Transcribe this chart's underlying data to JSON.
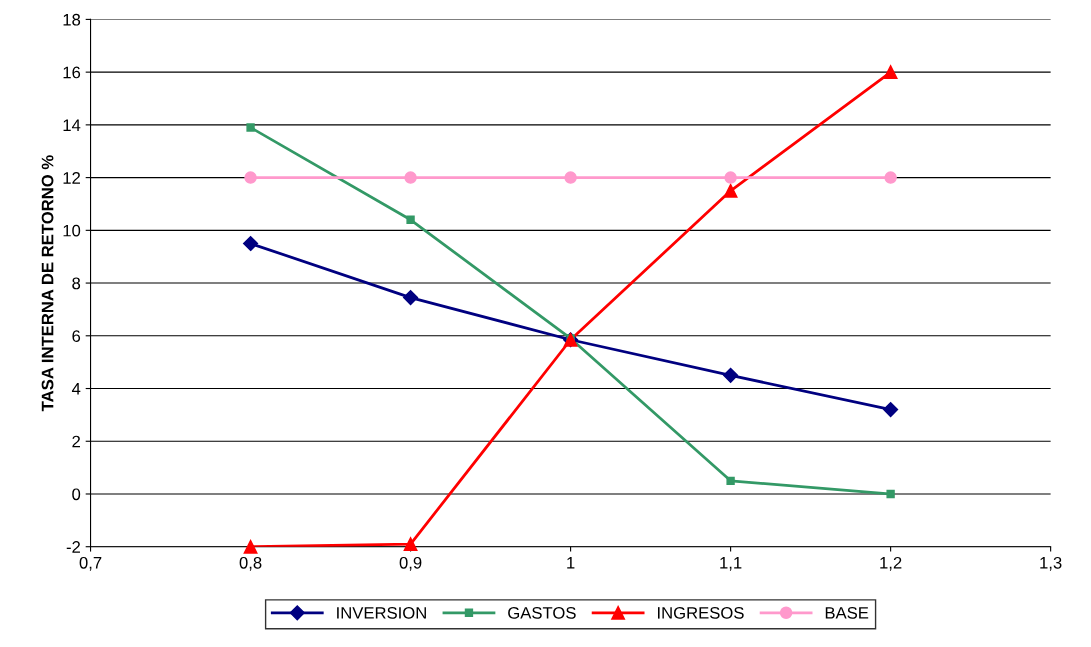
{
  "chart_data": {
    "type": "line",
    "ylabel": "TASA INTERNA DE RETORNO %",
    "x": [
      0.8,
      0.9,
      1.0,
      1.1,
      1.2
    ],
    "series": [
      {
        "name": "INVERSION",
        "color": "#000080",
        "marker": "diamond",
        "values": [
          9.5,
          7.45,
          5.85,
          4.5,
          3.2
        ]
      },
      {
        "name": "GASTOS",
        "color": "#339966",
        "marker": "square",
        "values": [
          13.9,
          10.4,
          5.9,
          0.5,
          0.0
        ]
      },
      {
        "name": "INGRESOS",
        "color": "#ff0000",
        "marker": "triangle",
        "values": [
          -2.0,
          -1.9,
          5.85,
          11.5,
          16.0
        ]
      },
      {
        "name": "BASE",
        "color": "#ff99cc",
        "marker": "circle",
        "values": [
          12,
          12,
          12,
          12,
          12
        ]
      }
    ],
    "xlim": [
      0.7,
      1.3
    ],
    "xticks": [
      {
        "value": 0.7,
        "label": "0,7"
      },
      {
        "value": 0.8,
        "label": "0,8"
      },
      {
        "value": 0.9,
        "label": "0,9"
      },
      {
        "value": 1.0,
        "label": "1"
      },
      {
        "value": 1.1,
        "label": "1,1"
      },
      {
        "value": 1.2,
        "label": "1,2"
      },
      {
        "value": 1.3,
        "label": "1,3"
      }
    ],
    "ylim": [
      -2,
      18
    ],
    "yticks": [
      -2,
      0,
      2,
      4,
      6,
      8,
      10,
      12,
      14,
      16,
      18
    ],
    "grid": "y",
    "legend": "bottom",
    "line_style": "solid"
  }
}
